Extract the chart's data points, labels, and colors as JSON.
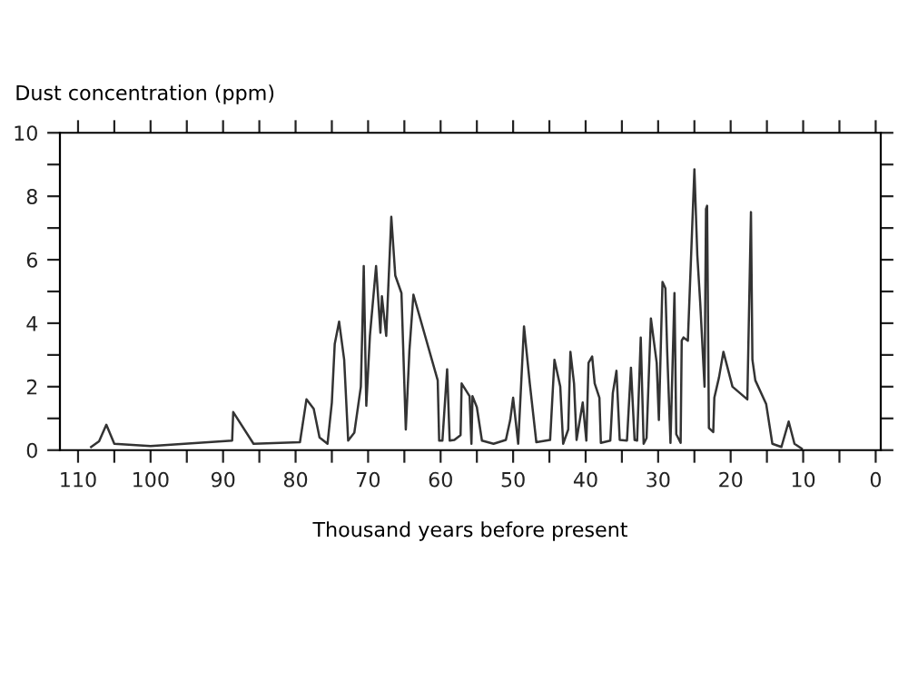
{
  "chart_data": {
    "type": "line",
    "ylabel": "Dust concentration (ppm)",
    "xlabel": "Thousand years before present",
    "xlim": [
      112.5,
      -0.7
    ],
    "ylim": [
      0,
      10
    ],
    "xticks": [
      110,
      {
        "value": 105,
        "label": null
      },
      100,
      {
        "value": 95,
        "label": null
      },
      90,
      {
        "value": 85,
        "label": null
      },
      80,
      {
        "value": 75,
        "label": null
      },
      70,
      {
        "value": 65,
        "label": null
      },
      60,
      {
        "value": 55,
        "label": null
      },
      50,
      {
        "value": 45,
        "label": null
      },
      40,
      {
        "value": 35,
        "label": null
      },
      30,
      {
        "value": 25,
        "label": null
      },
      20,
      {
        "value": 15,
        "label": null
      },
      10,
      {
        "value": 5,
        "label": null
      },
      0
    ],
    "yticks": [
      0,
      {
        "value": 1,
        "label": null
      },
      2,
      {
        "value": 3,
        "label": null
      },
      4,
      {
        "value": 5,
        "label": null
      },
      6,
      {
        "value": 7,
        "label": null
      },
      8,
      {
        "value": 9,
        "label": null
      },
      10
    ],
    "grid": false,
    "marker": "none",
    "line_style": "solid",
    "series": [
      {
        "color": "#333333",
        "x": [
          108.2,
          107.1,
          106.1,
          105,
          100,
          88.75,
          88.6,
          85.8,
          79.4,
          78.5,
          77.5,
          76.7,
          75.6,
          75,
          74.6,
          74,
          73.3,
          72.75,
          71.9,
          71,
          70.8,
          70.6,
          70.25,
          69.75,
          68.9,
          68.3,
          68.1,
          67.5,
          66.8,
          66.25,
          65.4,
          64.8,
          64.3,
          63.75,
          60.4,
          60.2,
          59.75,
          59.1,
          58.75,
          58.1,
          57.25,
          57.1,
          56,
          55.75,
          55.6,
          55,
          54.3,
          52.7,
          51,
          50.4,
          50,
          49.3,
          48.5,
          47.7,
          46.8,
          44.9,
          44.3,
          43.5,
          43.1,
          42.4,
          42.1,
          41.6,
          41.25,
          40.4,
          39.9,
          39.6,
          39.1,
          38.75,
          38.1,
          37.9,
          36.6,
          36.25,
          35.75,
          35.3,
          34.3,
          33.75,
          33.25,
          32.9,
          32.4,
          32,
          31.6,
          31,
          30.2,
          29.9,
          29.4,
          29,
          28.75,
          28.3,
          27.75,
          27.5,
          26.9,
          26.75,
          26.5,
          25.9,
          25,
          24.6,
          24.2,
          23.6,
          23.4,
          23.25,
          23,
          22.4,
          22.25,
          21.6,
          21,
          19.75,
          17.7,
          17.2,
          17,
          16.6,
          15.1,
          14.25,
          13,
          12,
          11.2,
          10.2
        ],
        "values": [
          0.1,
          0.28,
          0.8,
          0.2,
          0.13,
          0.3,
          1.2,
          0.2,
          0.25,
          1.6,
          1.3,
          0.4,
          0.2,
          1.5,
          3.35,
          4.05,
          2.85,
          0.3,
          0.55,
          2,
          3.8,
          5.8,
          1.4,
          3.6,
          5.8,
          3.7,
          4.85,
          3.6,
          7.35,
          5.5,
          4.95,
          0.65,
          3.15,
          4.9,
          2.2,
          0.3,
          0.3,
          2.55,
          0.3,
          0.32,
          0.47,
          2.1,
          1.7,
          0.2,
          1.7,
          1.35,
          0.3,
          0.2,
          0.32,
          0.95,
          1.65,
          0.2,
          3.9,
          2.1,
          0.25,
          0.32,
          2.85,
          2.0,
          0.2,
          0.65,
          3.1,
          2.1,
          0.32,
          1.5,
          0.3,
          2.75,
          2.95,
          2.1,
          1.65,
          0.23,
          0.3,
          1.8,
          2.5,
          0.32,
          0.3,
          2.6,
          0.32,
          0.3,
          3.55,
          0.2,
          0.38,
          4.15,
          2.75,
          0.95,
          5.3,
          5.1,
          3.1,
          0.23,
          4.95,
          0.5,
          0.23,
          3.45,
          3.55,
          3.45,
          8.85,
          6.15,
          4.65,
          2.0,
          7.6,
          7.7,
          0.7,
          0.57,
          1.65,
          2.3,
          3.1,
          2.0,
          1.6,
          7.5,
          2.85,
          2.2,
          1.45,
          0.2,
          0.1,
          0.9,
          0.2,
          0.05
        ]
      }
    ]
  }
}
